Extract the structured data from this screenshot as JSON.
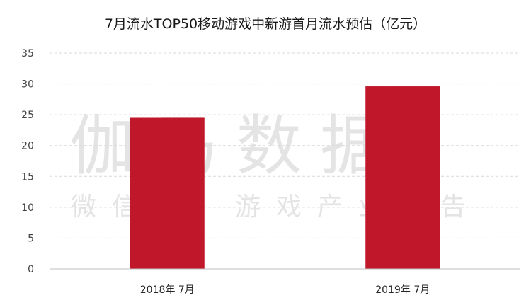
{
  "watermark": {
    "main": "伽马数据",
    "sub": "微信号：游戏产业报告"
  },
  "colors": {
    "bar": "#c0172a",
    "grid": "#d9d9d9",
    "axis": "#bfbfbf"
  },
  "chart_data": {
    "type": "bar",
    "title": "7月流水TOP50移动游戏中新游首月流水预估（亿元）",
    "categories": [
      "2018年 7月",
      "2019年 7月"
    ],
    "values": [
      24.5,
      29.6
    ],
    "ylim": [
      0,
      35
    ],
    "yticks": [
      0,
      5,
      10,
      15,
      20,
      25,
      30,
      35
    ],
    "grid": true,
    "legend": "none",
    "xlabel": "",
    "ylabel": ""
  }
}
